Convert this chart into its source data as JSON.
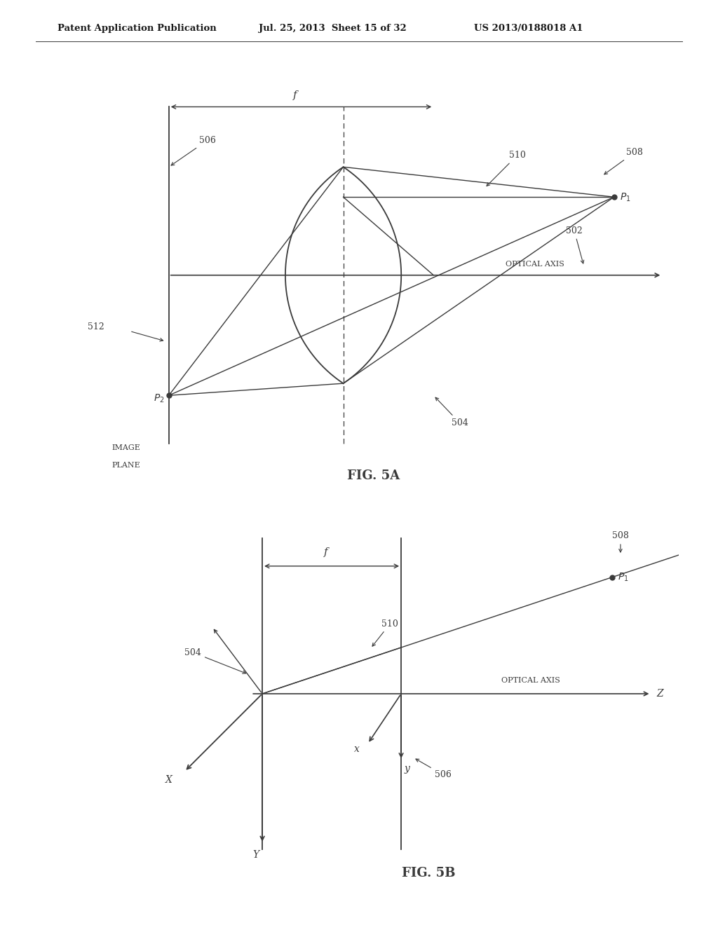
{
  "title_line1": "Patent Application Publication",
  "title_line2": "Jul. 25, 2013  Sheet 15 of 32",
  "title_line3": "US 2013/0188018 A1",
  "fig5a_title": "FIG. 5A",
  "fig5b_title": "FIG. 5B",
  "bg_color": "#ffffff",
  "line_color": "#3a3a3a",
  "text_color": "#1a1a1a"
}
